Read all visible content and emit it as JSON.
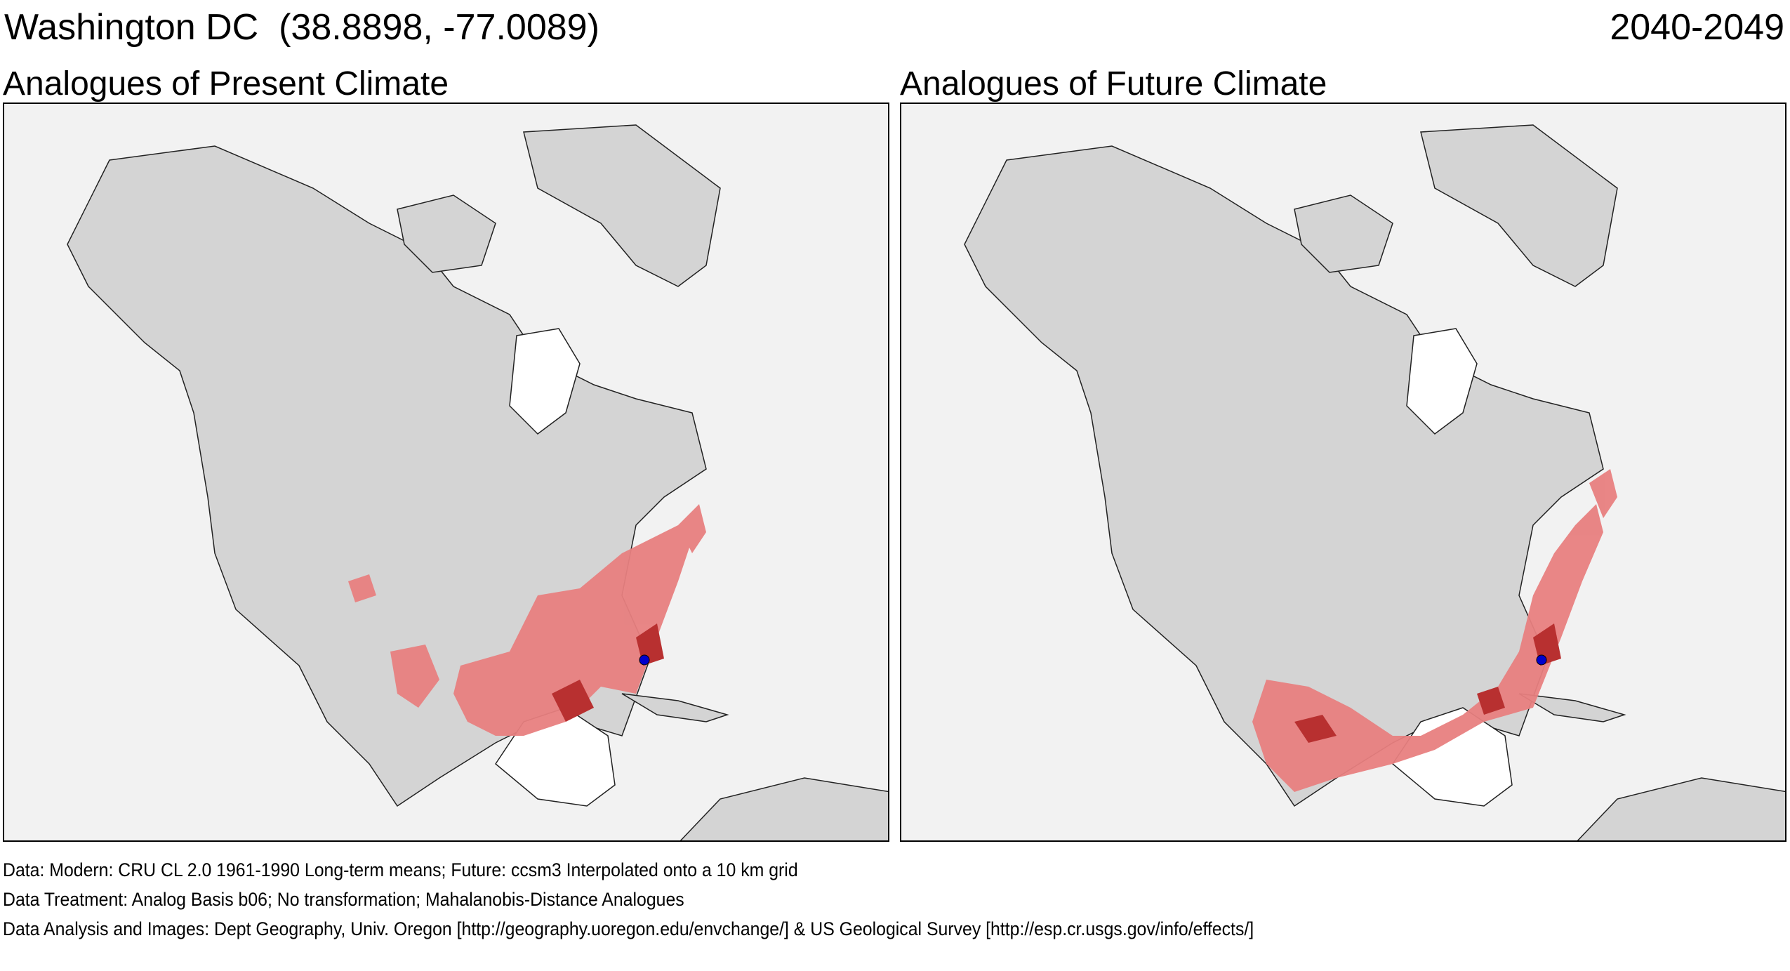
{
  "header": {
    "location_title": "Washington DC  (38.8898, -77.0089)",
    "period": "2040-2049"
  },
  "panels": [
    {
      "title": "Analogues of Present Climate"
    },
    {
      "title": "Analogues of Future Climate"
    }
  ],
  "captions": [
    "Data:  Modern: CRU CL 2.0 1961-1990 Long-term means; Future: ccsm3 Interpolated onto a 10 km grid",
    "Data Treatment:  Analog Basis b06; No transformation; Mahalanobis-Distance Analogues",
    "Data Analysis and Images:  Dept Geography, Univ. Oregon [http://geography.uoregon.edu/envchange/] & US Geological Survey [http://esp.cr.usgs.gov/info/effects/]"
  ],
  "colors": {
    "ocean": "#f2f2f2",
    "land": "#d4d4d4",
    "analog_light": "#e88080",
    "analog_dark": "#b83030",
    "target_marker": "#0000cc"
  }
}
